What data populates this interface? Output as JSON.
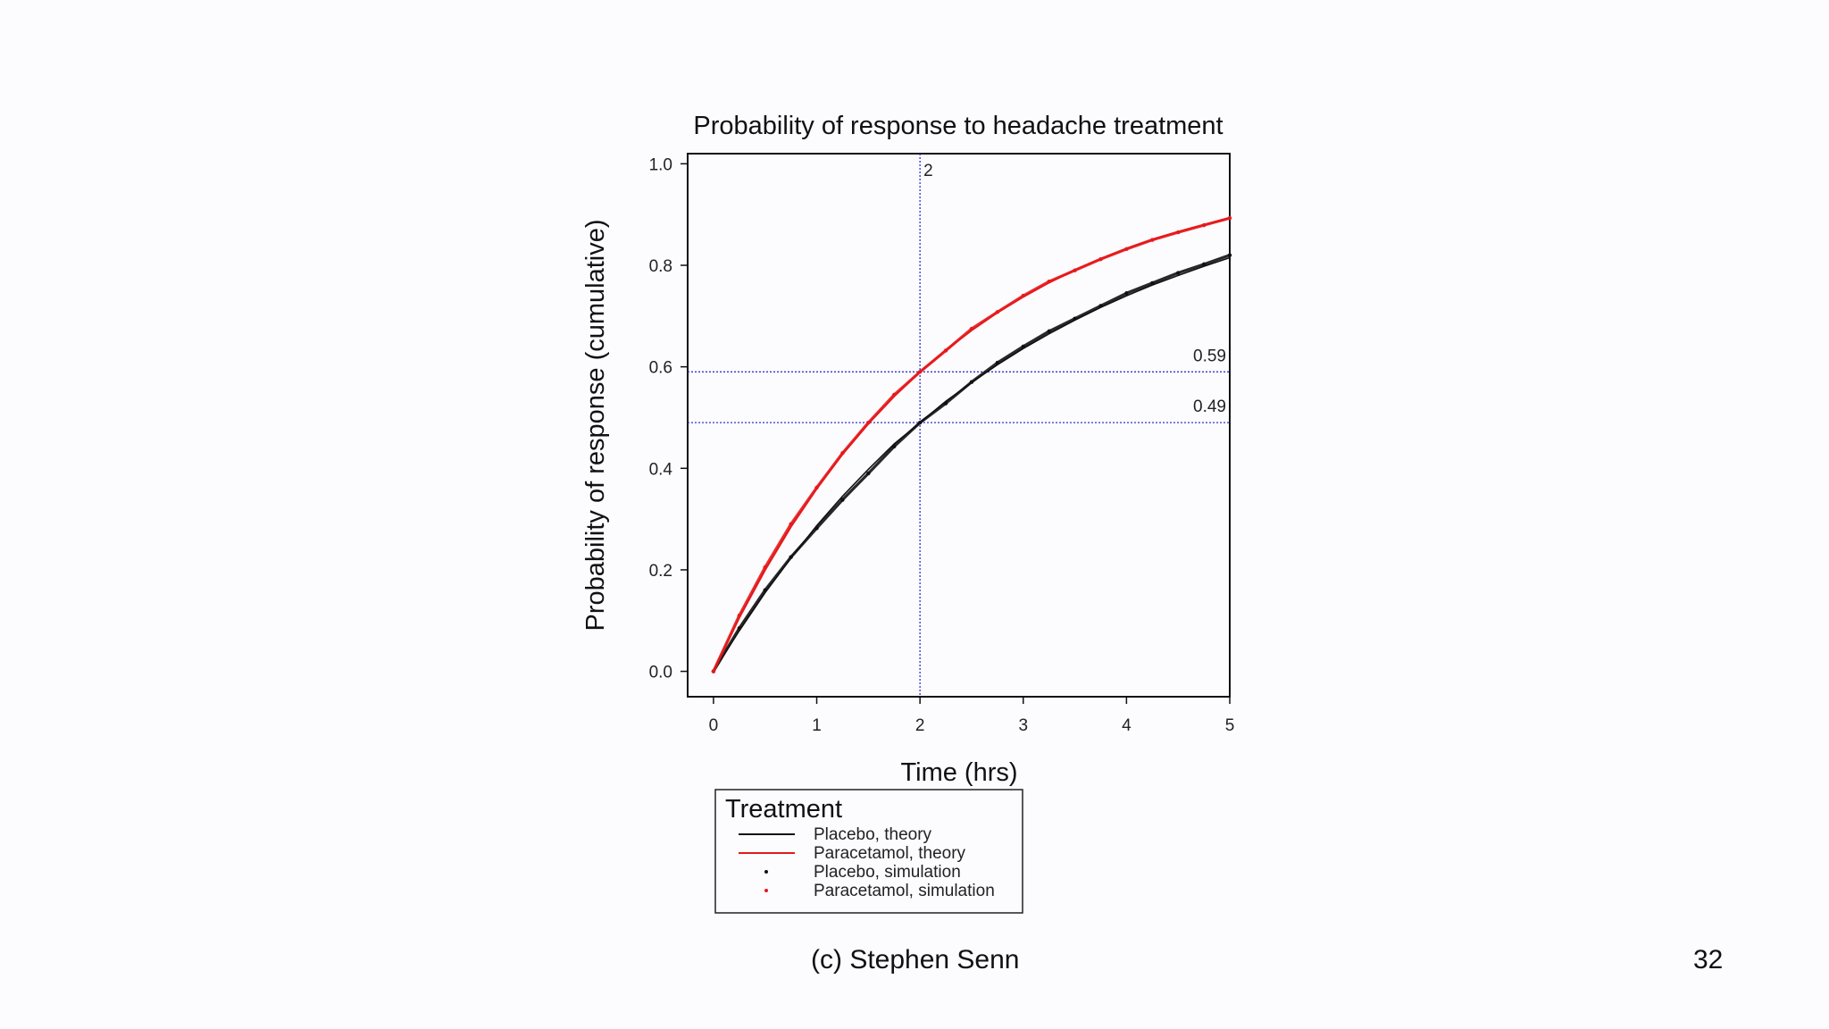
{
  "slide": {
    "footer": "(c) Stephen Senn",
    "page_number": "32",
    "background": "#fcfbfe"
  },
  "chart_data": {
    "type": "line",
    "title": "Probability of response to headache treatment",
    "xlabel": "Time (hrs)",
    "ylabel": "Probability of response (cumulative)",
    "xlim": [
      -0.25,
      5
    ],
    "ylim": [
      -0.05,
      1.02
    ],
    "xticks": [
      "0",
      "1",
      "2",
      "3",
      "4",
      "5"
    ],
    "yticks": [
      "0.0",
      "0.2",
      "0.4",
      "0.6",
      "0.8",
      "1.0"
    ],
    "grid": false,
    "legend": {
      "title": "Treatment",
      "position": "bottom",
      "entries": [
        "Placebo, theory",
        "Paracetamol, theory",
        "Placebo, simulation",
        "Paracetamol, simulation"
      ]
    },
    "series": [
      {
        "name": "Placebo, theory",
        "style": "line",
        "color": "#111111",
        "x": [
          0,
          0.25,
          0.5,
          0.75,
          1,
          1.25,
          1.5,
          1.75,
          2,
          2.25,
          2.5,
          2.75,
          3,
          3.25,
          3.5,
          3.75,
          4,
          4.25,
          4.5,
          4.75,
          5
        ],
        "y": [
          0,
          0.08,
          0.155,
          0.223,
          0.287,
          0.345,
          0.398,
          0.448,
          0.49,
          0.532,
          0.569,
          0.604,
          0.636,
          0.665,
          0.692,
          0.717,
          0.74,
          0.761,
          0.78,
          0.798,
          0.815
        ]
      },
      {
        "name": "Paracetamol, theory",
        "style": "line",
        "color": "#e41a1c",
        "x": [
          0,
          0.25,
          0.5,
          0.75,
          1,
          1.25,
          1.5,
          1.75,
          2,
          2.25,
          2.5,
          2.75,
          3,
          3.25,
          3.5,
          3.75,
          4,
          4.25,
          4.5,
          4.75,
          5
        ],
        "y": [
          0,
          0.106,
          0.2,
          0.285,
          0.36,
          0.428,
          0.488,
          0.542,
          0.59,
          0.633,
          0.672,
          0.707,
          0.738,
          0.766,
          0.791,
          0.813,
          0.833,
          0.851,
          0.866,
          0.88,
          0.893
        ]
      },
      {
        "name": "Placebo, simulation",
        "style": "points",
        "color": "#111111",
        "x": [
          0,
          0.25,
          0.5,
          0.75,
          1,
          1.25,
          1.5,
          1.75,
          2,
          2.25,
          2.5,
          2.75,
          3,
          3.25,
          3.5,
          3.75,
          4,
          4.25,
          4.5,
          4.75,
          5
        ],
        "y": [
          0,
          0.085,
          0.16,
          0.225,
          0.282,
          0.338,
          0.39,
          0.443,
          0.49,
          0.528,
          0.57,
          0.608,
          0.64,
          0.67,
          0.695,
          0.72,
          0.745,
          0.765,
          0.785,
          0.802,
          0.82
        ]
      },
      {
        "name": "Paracetamol, simulation",
        "style": "points",
        "color": "#e41a1c",
        "x": [
          0,
          0.25,
          0.5,
          0.75,
          1,
          1.25,
          1.5,
          1.75,
          2,
          2.25,
          2.5,
          2.75,
          3,
          3.25,
          3.5,
          3.75,
          4,
          4.25,
          4.5,
          4.75,
          5
        ],
        "y": [
          0,
          0.11,
          0.205,
          0.29,
          0.362,
          0.43,
          0.49,
          0.545,
          0.59,
          0.632,
          0.675,
          0.708,
          0.74,
          0.768,
          0.79,
          0.812,
          0.832,
          0.85,
          0.865,
          0.879,
          0.893
        ]
      }
    ],
    "reference_lines": [
      {
        "orientation": "vertical",
        "value": 2,
        "label": "2",
        "color": "#3333cc"
      },
      {
        "orientation": "horizontal",
        "value": 0.59,
        "label": "0.59",
        "color": "#3333cc"
      },
      {
        "orientation": "horizontal",
        "value": 0.49,
        "label": "0.49",
        "color": "#3333cc"
      }
    ]
  }
}
